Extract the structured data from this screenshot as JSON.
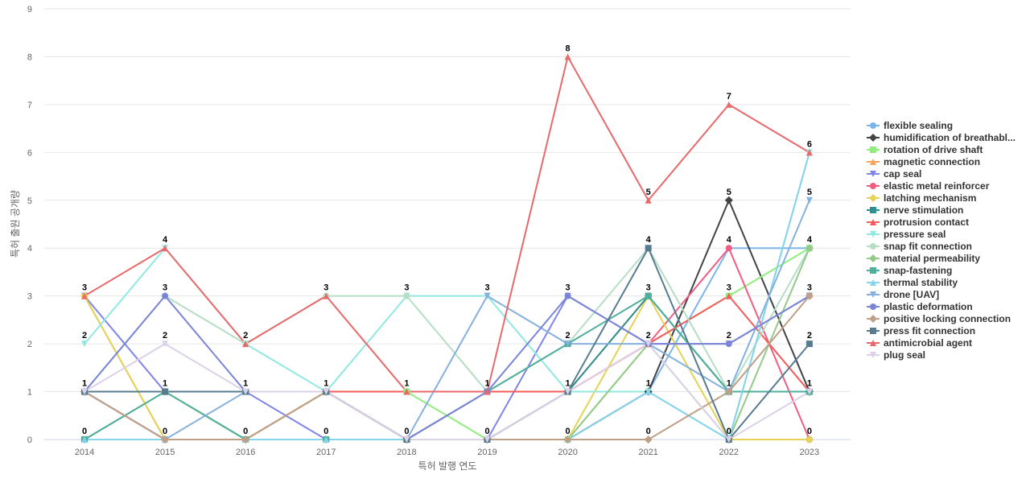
{
  "chart_data": {
    "type": "line",
    "xlabel": "특허 발행 연도",
    "ylabel": "특허 출원 공개량",
    "ylim": [
      0,
      9
    ],
    "yticks": [
      0,
      1,
      2,
      3,
      4,
      5,
      6,
      7,
      8,
      9
    ],
    "grid": true,
    "legend_position": "right",
    "x": [
      "2014",
      "2015",
      "2016",
      "2017",
      "2018",
      "2019",
      "2020",
      "2021",
      "2022",
      "2023"
    ],
    "series": [
      {
        "name": "flexible sealing",
        "color": "#7cb5ec",
        "marker": "circle",
        "values": [
          1,
          1,
          1,
          1,
          1,
          1,
          1,
          1,
          4,
          4
        ]
      },
      {
        "name": "humidification of breathabl...",
        "color": "#434348",
        "marker": "diamond",
        "values": [
          1,
          0,
          0,
          1,
          0,
          0,
          0,
          1,
          5,
          1
        ]
      },
      {
        "name": "rotation of drive shaft",
        "color": "#90ed7d",
        "marker": "square",
        "values": [
          1,
          1,
          0,
          1,
          1,
          0,
          0,
          2,
          3,
          4
        ]
      },
      {
        "name": "magnetic connection",
        "color": "#f7a35c",
        "marker": "triangle",
        "values": [
          3,
          0,
          0,
          1,
          0,
          0,
          1,
          3,
          1,
          1
        ]
      },
      {
        "name": "cap seal",
        "color": "#8085e9",
        "marker": "triangle-down",
        "values": [
          3,
          1,
          1,
          0,
          0,
          0,
          3,
          2,
          2,
          3
        ]
      },
      {
        "name": "elastic metal reinforcer",
        "color": "#f15c80",
        "marker": "circle",
        "values": [
          0,
          0,
          0,
          0,
          0,
          1,
          1,
          2,
          4,
          0
        ]
      },
      {
        "name": "latching mechanism",
        "color": "#e4d354",
        "marker": "diamond",
        "values": [
          3,
          0,
          0,
          0,
          0,
          0,
          0,
          3,
          0,
          0
        ]
      },
      {
        "name": "nerve stimulation",
        "color": "#2b908f",
        "marker": "square",
        "values": [
          1,
          1,
          1,
          1,
          0,
          0,
          1,
          3,
          1,
          1
        ]
      },
      {
        "name": "protrusion contact",
        "color": "#f45b5b",
        "marker": "triangle",
        "values": [
          1,
          1,
          1,
          1,
          1,
          1,
          1,
          2,
          3,
          1
        ]
      },
      {
        "name": "pressure seal",
        "color": "#91e8e1",
        "marker": "triangle-down",
        "values": [
          2,
          4,
          2,
          1,
          3,
          3,
          1,
          1,
          0,
          6
        ]
      },
      {
        "name": "snap fit connection",
        "color": "#b5dec5",
        "marker": "circle",
        "values": [
          1,
          3,
          2,
          3,
          3,
          1,
          2,
          4,
          1,
          4
        ]
      },
      {
        "name": "material permeability",
        "color": "#94c98a",
        "marker": "diamond",
        "values": [
          0,
          1,
          0,
          0,
          0,
          0,
          0,
          2,
          0,
          4
        ]
      },
      {
        "name": "snap-fastening",
        "color": "#4fae9c",
        "marker": "square",
        "values": [
          0,
          1,
          0,
          0,
          0,
          1,
          2,
          3,
          1,
          1
        ]
      },
      {
        "name": "thermal stability",
        "color": "#86d3ec",
        "marker": "triangle",
        "values": [
          0,
          0,
          0,
          0,
          0,
          0,
          0,
          1,
          0,
          6
        ]
      },
      {
        "name": "drone [UAV]",
        "color": "#85b1de",
        "marker": "triangle-down",
        "values": [
          1,
          0,
          1,
          1,
          0,
          3,
          2,
          2,
          1,
          5
        ]
      },
      {
        "name": "plastic deformation",
        "color": "#7b85d6",
        "marker": "circle",
        "values": [
          1,
          3,
          1,
          1,
          0,
          1,
          3,
          2,
          2,
          3
        ]
      },
      {
        "name": "positive locking connection",
        "color": "#c09f87",
        "marker": "diamond",
        "values": [
          1,
          0,
          0,
          1,
          0,
          0,
          0,
          0,
          1,
          3
        ]
      },
      {
        "name": "press fit connection",
        "color": "#587c8f",
        "marker": "square",
        "values": [
          1,
          1,
          1,
          1,
          0,
          0,
          1,
          4,
          0,
          2
        ]
      },
      {
        "name": "antimicrobial agent",
        "color": "#e8696b",
        "marker": "triangle",
        "values": [
          3,
          4,
          2,
          3,
          1,
          1,
          8,
          5,
          7,
          6
        ]
      },
      {
        "name": "plug seal",
        "color": "#dcd1e8",
        "marker": "triangle-down",
        "values": [
          1,
          2,
          1,
          1,
          0,
          0,
          1,
          2,
          0,
          1
        ]
      }
    ],
    "data_labels": [
      {
        "x": "2014",
        "values": [
          3,
          2,
          1,
          0
        ]
      },
      {
        "x": "2015",
        "values": [
          4,
          3,
          2,
          1,
          0
        ]
      },
      {
        "x": "2016",
        "values": [
          2,
          1,
          0
        ]
      },
      {
        "x": "2017",
        "values": [
          3,
          1,
          0
        ]
      },
      {
        "x": "2018",
        "values": [
          3,
          1,
          0
        ]
      },
      {
        "x": "2019",
        "values": [
          3,
          1,
          0
        ]
      },
      {
        "x": "2020",
        "values": [
          8,
          3,
          2,
          1,
          0
        ]
      },
      {
        "x": "2021",
        "values": [
          5,
          4,
          3,
          2,
          1,
          0
        ]
      },
      {
        "x": "2022",
        "values": [
          7,
          5,
          4,
          3,
          2,
          1,
          0
        ]
      },
      {
        "x": "2023",
        "values": [
          6,
          5,
          4,
          3,
          2,
          1,
          0
        ]
      }
    ]
  }
}
